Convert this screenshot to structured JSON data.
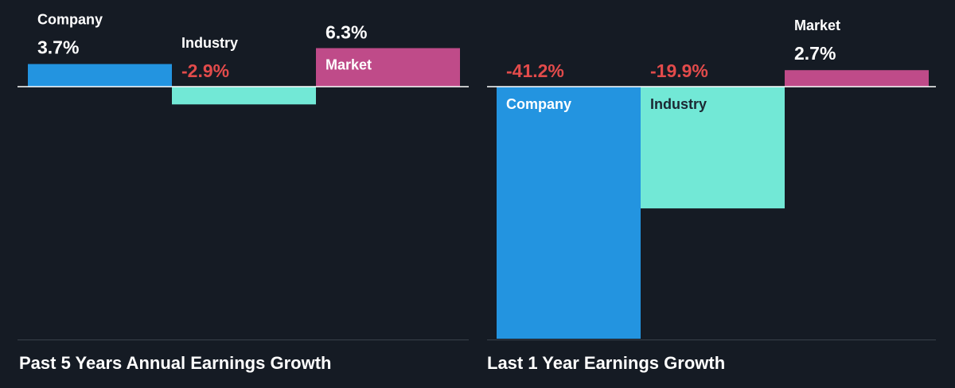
{
  "chart_data": [
    {
      "type": "bar",
      "title": "Past 5 Years Annual Earnings Growth",
      "categories": [
        "Company",
        "Industry",
        "Market"
      ],
      "values": [
        3.7,
        -2.9,
        6.3
      ],
      "value_labels": [
        "3.7%",
        "-2.9%",
        "6.3%"
      ],
      "unit": "%",
      "colors": [
        "#2394e0",
        "#72e8d6",
        "#bf4b89"
      ],
      "label_colors": {
        "positive": "#ffffff",
        "negative": "#e24b4b"
      },
      "grid": false
    },
    {
      "type": "bar",
      "title": "Last 1 Year Earnings Growth",
      "categories": [
        "Company",
        "Industry",
        "Market"
      ],
      "values": [
        -41.2,
        -19.9,
        2.7
      ],
      "value_labels": [
        "-41.2%",
        "-19.9%",
        "2.7%"
      ],
      "unit": "%",
      "colors": [
        "#2394e0",
        "#72e8d6",
        "#bf4b89"
      ],
      "label_colors": {
        "positive": "#ffffff",
        "negative": "#e24b4b"
      },
      "grid": false
    }
  ]
}
